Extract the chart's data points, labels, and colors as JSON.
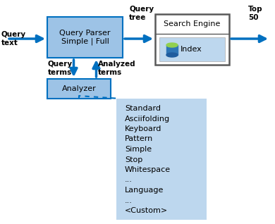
{
  "bg_color": "#ffffff",
  "arrow_color": "#0070C0",
  "box_light_blue": "#9DC3E6",
  "box_dark_gray": "#595959",
  "box_inner_blue": "#BDD7EE",
  "query_text_label": "Query\ntext",
  "query_tree_label": "Query\ntree",
  "top50_label": "Top\n50",
  "query_terms_label": "Query\nterms",
  "analyzed_terms_label": "Analyzed\nterms",
  "parser_box_text": "Query Parser\nSimple | Full",
  "analyzer_box_text": "Analyzer",
  "search_engine_text": "Search Engine",
  "index_text": "Index",
  "analyzer_list": [
    "Standard",
    "Asciifolding",
    "Keyboard",
    "Pattern",
    "Simple",
    "Stop",
    "Whitespace",
    "...",
    "Language",
    "...",
    "<Custom>"
  ],
  "figsize": [
    3.9,
    3.18
  ],
  "dpi": 100
}
